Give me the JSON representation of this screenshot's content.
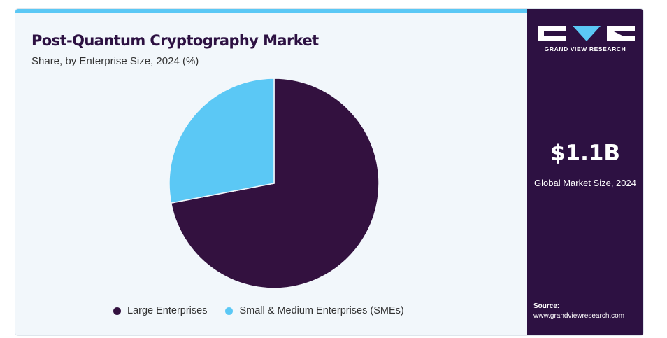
{
  "title": "Post-Quantum Cryptography Market",
  "subtitle": "Share, by Enterprise Size, 2024 (%)",
  "colors": {
    "accent": "#5bc8f5",
    "brand": "#2d1142",
    "panel_bg": "#f2f7fb"
  },
  "chart_data": {
    "type": "pie",
    "title": "Post-Quantum Cryptography Market",
    "subtitle": "Share, by Enterprise Size, 2024 (%)",
    "legend_position": "bottom",
    "start_angle_deg": 0,
    "direction": "clockwise",
    "slices": [
      {
        "label": "Large Enterprises",
        "value": 72,
        "color": "#33113f"
      },
      {
        "label": "Small & Medium Enterprises (SMEs)",
        "value": 28,
        "color": "#5bc8f5"
      }
    ]
  },
  "sidebar": {
    "logo_icon": "grand-view-research-logo",
    "brand_name": "GRAND VIEW RESEARCH",
    "market_value": "$1.1B",
    "market_label": "Global Market Size, 2024",
    "source_label": "Source:",
    "source_url": "www.grandviewresearch.com"
  }
}
